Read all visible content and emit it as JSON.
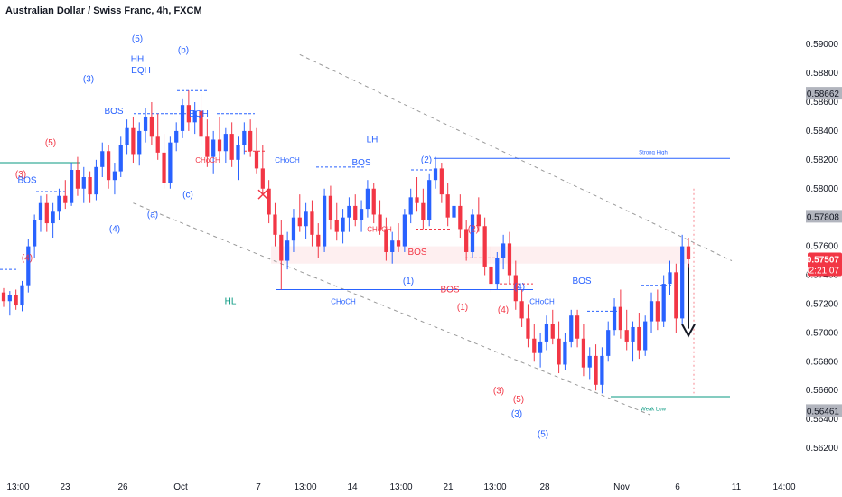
{
  "chart_data": {
    "type": "candlestick",
    "title": "Australian Dollar / Swiss Franc, 4h, FXCM",
    "symbol": "AUDCHF",
    "interval": "4h",
    "source": "FXCM",
    "ylim": [
      0.561,
      0.5912
    ],
    "y_ticks": [
      "0.59000",
      "0.58800",
      "0.58600",
      "0.58400",
      "0.58200",
      "0.58000",
      "0.57600",
      "0.57400",
      "0.57200",
      "0.57000",
      "0.56800",
      "0.56600",
      "0.56400",
      "0.56200"
    ],
    "x_ticks": [
      "13:00",
      "23",
      "26",
      "Oct",
      "7",
      "13:00",
      "14",
      "13:00",
      "21",
      "13:00",
      "28",
      "Nov",
      "6",
      "11",
      "14:00"
    ],
    "price_markers": [
      {
        "value": "0.58662",
        "style": "gray"
      },
      {
        "value": "0.57808",
        "style": "gray"
      },
      {
        "value": "0.57507",
        "style": "red",
        "countdown": "02:21:07"
      },
      {
        "value": "0.56461",
        "style": "gray"
      }
    ],
    "levels": [
      {
        "name": "Strong High",
        "value": 0.5821
      },
      {
        "name": "Weak Low",
        "value": 0.56557
      },
      {
        "name": "CHoCH",
        "value": 0.573
      }
    ],
    "candles": [
      [
        0.5728,
        0.5731,
        0.5718,
        0.5722
      ],
      [
        0.5722,
        0.5729,
        0.5712,
        0.5726
      ],
      [
        0.5726,
        0.573,
        0.5716,
        0.5719
      ],
      [
        0.5719,
        0.5736,
        0.5715,
        0.5733
      ],
      [
        0.5733,
        0.5765,
        0.5728,
        0.576
      ],
      [
        0.576,
        0.5782,
        0.5752,
        0.5778
      ],
      [
        0.5778,
        0.5795,
        0.577,
        0.579
      ],
      [
        0.579,
        0.5796,
        0.577,
        0.5776
      ],
      [
        0.5776,
        0.579,
        0.5766,
        0.5784
      ],
      [
        0.5784,
        0.58,
        0.5778,
        0.5795
      ],
      [
        0.5795,
        0.5806,
        0.5786,
        0.579
      ],
      [
        0.579,
        0.5818,
        0.5788,
        0.5813
      ],
      [
        0.5813,
        0.5822,
        0.5795,
        0.58
      ],
      [
        0.58,
        0.5815,
        0.579,
        0.5808
      ],
      [
        0.5808,
        0.5812,
        0.579,
        0.5796
      ],
      [
        0.5796,
        0.582,
        0.5792,
        0.5815
      ],
      [
        0.5815,
        0.5832,
        0.5808,
        0.5826
      ],
      [
        0.5826,
        0.583,
        0.58,
        0.5806
      ],
      [
        0.5806,
        0.5818,
        0.5796,
        0.5812
      ],
      [
        0.5812,
        0.5836,
        0.5808,
        0.583
      ],
      [
        0.583,
        0.5848,
        0.5824,
        0.5842
      ],
      [
        0.5842,
        0.585,
        0.5818,
        0.5824
      ],
      [
        0.5824,
        0.5846,
        0.5816,
        0.584
      ],
      [
        0.584,
        0.5856,
        0.5832,
        0.585
      ],
      [
        0.585,
        0.586,
        0.583,
        0.5836
      ],
      [
        0.5836,
        0.5852,
        0.582,
        0.5825
      ],
      [
        0.5825,
        0.5838,
        0.58,
        0.5804
      ],
      [
        0.5804,
        0.5836,
        0.58,
        0.5832
      ],
      [
        0.5832,
        0.5846,
        0.5826,
        0.584
      ],
      [
        0.584,
        0.5862,
        0.5835,
        0.5858
      ],
      [
        0.5858,
        0.5868,
        0.584,
        0.5846
      ],
      [
        0.5846,
        0.586,
        0.5838,
        0.5854
      ],
      [
        0.5854,
        0.5866,
        0.583,
        0.5836
      ],
      [
        0.5836,
        0.5848,
        0.5815,
        0.5822
      ],
      [
        0.5822,
        0.584,
        0.581,
        0.5834
      ],
      [
        0.5834,
        0.585,
        0.582,
        0.5826
      ],
      [
        0.5826,
        0.5842,
        0.5818,
        0.5838
      ],
      [
        0.5838,
        0.5846,
        0.5815,
        0.582
      ],
      [
        0.582,
        0.5836,
        0.5806,
        0.583
      ],
      [
        0.583,
        0.5846,
        0.5824,
        0.584
      ],
      [
        0.584,
        0.5848,
        0.5822,
        0.5826
      ],
      [
        0.5826,
        0.5842,
        0.581,
        0.5814
      ],
      [
        0.5814,
        0.583,
        0.5796,
        0.58
      ],
      [
        0.58,
        0.5806,
        0.5776,
        0.5782
      ],
      [
        0.5782,
        0.579,
        0.576,
        0.5768
      ],
      [
        0.5768,
        0.5778,
        0.573,
        0.575
      ],
      [
        0.575,
        0.577,
        0.5744,
        0.5764
      ],
      [
        0.5764,
        0.5786,
        0.5756,
        0.578
      ],
      [
        0.578,
        0.5796,
        0.577,
        0.5774
      ],
      [
        0.5774,
        0.579,
        0.5765,
        0.5784
      ],
      [
        0.5784,
        0.5792,
        0.576,
        0.5768
      ],
      [
        0.5768,
        0.5776,
        0.5752,
        0.576
      ],
      [
        0.576,
        0.58,
        0.5756,
        0.5795
      ],
      [
        0.5795,
        0.5802,
        0.5772,
        0.5778
      ],
      [
        0.5778,
        0.579,
        0.5764,
        0.577
      ],
      [
        0.577,
        0.5786,
        0.5762,
        0.578
      ],
      [
        0.578,
        0.5794,
        0.577,
        0.5788
      ],
      [
        0.5788,
        0.5796,
        0.5774,
        0.5778
      ],
      [
        0.5778,
        0.5792,
        0.577,
        0.5786
      ],
      [
        0.5786,
        0.5806,
        0.578,
        0.58
      ],
      [
        0.58,
        0.5804,
        0.5776,
        0.5782
      ],
      [
        0.5782,
        0.5792,
        0.5768,
        0.5772
      ],
      [
        0.5772,
        0.578,
        0.575,
        0.5756
      ],
      [
        0.5756,
        0.577,
        0.5748,
        0.5764
      ],
      [
        0.5764,
        0.5776,
        0.5756,
        0.576
      ],
      [
        0.576,
        0.5786,
        0.5756,
        0.5782
      ],
      [
        0.5782,
        0.58,
        0.5776,
        0.5794
      ],
      [
        0.5794,
        0.5808,
        0.5784,
        0.579
      ],
      [
        0.579,
        0.58,
        0.5772,
        0.5778
      ],
      [
        0.5778,
        0.581,
        0.5774,
        0.5806
      ],
      [
        0.5806,
        0.5822,
        0.58,
        0.5814
      ],
      [
        0.5814,
        0.5818,
        0.579,
        0.5796
      ],
      [
        0.5796,
        0.5804,
        0.5774,
        0.578
      ],
      [
        0.578,
        0.5794,
        0.577,
        0.5788
      ],
      [
        0.5788,
        0.5796,
        0.5766,
        0.5772
      ],
      [
        0.5772,
        0.5778,
        0.575,
        0.5756
      ],
      [
        0.5756,
        0.5786,
        0.5752,
        0.5782
      ],
      [
        0.5782,
        0.5794,
        0.577,
        0.5774
      ],
      [
        0.5774,
        0.578,
        0.574,
        0.5746
      ],
      [
        0.5746,
        0.576,
        0.5728,
        0.5734
      ],
      [
        0.5734,
        0.5756,
        0.573,
        0.5752
      ],
      [
        0.5752,
        0.5768,
        0.5744,
        0.5762
      ],
      [
        0.5762,
        0.577,
        0.5734,
        0.574
      ],
      [
        0.574,
        0.575,
        0.5716,
        0.5722
      ],
      [
        0.5722,
        0.573,
        0.5704,
        0.571
      ],
      [
        0.571,
        0.572,
        0.569,
        0.5696
      ],
      [
        0.5696,
        0.5706,
        0.568,
        0.5686
      ],
      [
        0.5686,
        0.57,
        0.5676,
        0.5694
      ],
      [
        0.5694,
        0.5712,
        0.5688,
        0.5706
      ],
      [
        0.5706,
        0.5716,
        0.5692,
        0.5696
      ],
      [
        0.5696,
        0.5708,
        0.5672,
        0.5678
      ],
      [
        0.5678,
        0.57,
        0.5674,
        0.5694
      ],
      [
        0.5694,
        0.5716,
        0.569,
        0.5712
      ],
      [
        0.5712,
        0.5716,
        0.569,
        0.5696
      ],
      [
        0.5696,
        0.5706,
        0.567,
        0.5676
      ],
      [
        0.5676,
        0.569,
        0.5668,
        0.5684
      ],
      [
        0.5684,
        0.5692,
        0.566,
        0.5664
      ],
      [
        0.5664,
        0.569,
        0.5658,
        0.5684
      ],
      [
        0.5684,
        0.5708,
        0.568,
        0.5702
      ],
      [
        0.5702,
        0.5724,
        0.5698,
        0.5718
      ],
      [
        0.5718,
        0.573,
        0.5696,
        0.5702
      ],
      [
        0.5702,
        0.5716,
        0.5688,
        0.5694
      ],
      [
        0.5694,
        0.5708,
        0.568,
        0.5704
      ],
      [
        0.5704,
        0.5714,
        0.5682,
        0.5688
      ],
      [
        0.5688,
        0.5712,
        0.5684,
        0.5708
      ],
      [
        0.5708,
        0.5728,
        0.57,
        0.5722
      ],
      [
        0.5722,
        0.573,
        0.5702,
        0.5708
      ],
      [
        0.5708,
        0.574,
        0.5704,
        0.5734
      ],
      [
        0.5734,
        0.575,
        0.5726,
        0.5742
      ],
      [
        0.5742,
        0.5748,
        0.57,
        0.571
      ],
      [
        0.571,
        0.5768,
        0.5706,
        0.576
      ],
      [
        0.576,
        0.5766,
        0.5745,
        0.5751
      ]
    ],
    "annotations": [
      {
        "text": "(5)",
        "kind": "blue",
        "x": 0.152,
        "y": 0.5902
      },
      {
        "text": "HH",
        "kind": "blue",
        "x": 0.152,
        "y": 0.5888
      },
      {
        "text": "EQH",
        "kind": "blue",
        "x": 0.156,
        "y": 0.588
      },
      {
        "text": "(b)",
        "kind": "blue",
        "x": 0.203,
        "y": 0.5894
      },
      {
        "text": "(3)",
        "kind": "blue",
        "x": 0.098,
        "y": 0.5874
      },
      {
        "text": "BOS",
        "kind": "blue",
        "x": 0.126,
        "y": 0.5852
      },
      {
        "text": "EQH",
        "kind": "blue",
        "x": 0.22,
        "y": 0.585
      },
      {
        "text": "(5)",
        "kind": "red",
        "x": 0.056,
        "y": 0.583
      },
      {
        "text": "(3)",
        "kind": "red",
        "x": 0.023,
        "y": 0.5808
      },
      {
        "text": "BOS",
        "kind": "blue",
        "x": 0.03,
        "y": 0.5804
      },
      {
        "text": "CHoCH",
        "kind": "red",
        "x": 0.23,
        "y": 0.5818
      },
      {
        "text": "(c)",
        "kind": "blue",
        "x": 0.208,
        "y": 0.5794
      },
      {
        "text": "(a)",
        "kind": "blue",
        "x": 0.169,
        "y": 0.578
      },
      {
        "text": "(4)",
        "kind": "blue",
        "x": 0.127,
        "y": 0.577
      },
      {
        "text": "(4)",
        "kind": "red",
        "x": 0.03,
        "y": 0.575
      },
      {
        "text": "CHoCH",
        "kind": "blue",
        "x": 0.318,
        "y": 0.5818
      },
      {
        "text": "LH",
        "kind": "blue",
        "x": 0.412,
        "y": 0.5832
      },
      {
        "text": "BOS",
        "kind": "blue",
        "x": 0.4,
        "y": 0.5816
      },
      {
        "text": "(2)",
        "kind": "blue",
        "x": 0.472,
        "y": 0.5818
      },
      {
        "text": "CHoCH",
        "kind": "red",
        "x": 0.42,
        "y": 0.577
      },
      {
        "text": "(2)",
        "kind": "red",
        "x": 0.524,
        "y": 0.577
      },
      {
        "text": "BOS",
        "kind": "red",
        "x": 0.462,
        "y": 0.5754
      },
      {
        "text": "(1)",
        "kind": "blue",
        "x": 0.452,
        "y": 0.5734
      },
      {
        "text": "BOS",
        "kind": "red",
        "x": 0.498,
        "y": 0.5728
      },
      {
        "text": "CHoCH",
        "kind": "blue",
        "x": 0.38,
        "y": 0.572
      },
      {
        "text": "HL",
        "kind": "teal",
        "x": 0.255,
        "y": 0.572
      },
      {
        "text": "(1)",
        "kind": "red",
        "x": 0.512,
        "y": 0.5716
      },
      {
        "text": "(4)",
        "kind": "red",
        "x": 0.557,
        "y": 0.5714
      },
      {
        "text": "(4)",
        "kind": "blue",
        "x": 0.575,
        "y": 0.573
      },
      {
        "text": "CHoCH",
        "kind": "blue",
        "x": 0.6,
        "y": 0.572
      },
      {
        "text": "BOS",
        "kind": "blue",
        "x": 0.644,
        "y": 0.5734
      },
      {
        "text": "(3)",
        "kind": "red",
        "x": 0.552,
        "y": 0.5658
      },
      {
        "text": "(5)",
        "kind": "red",
        "x": 0.574,
        "y": 0.5652
      },
      {
        "text": "(3)",
        "kind": "blue",
        "x": 0.572,
        "y": 0.5642
      },
      {
        "text": "(5)",
        "kind": "blue",
        "x": 0.601,
        "y": 0.5628
      },
      {
        "text": "Strong High",
        "kind": "blue",
        "x": 0.723,
        "y": 0.5824
      },
      {
        "text": "Weak Low",
        "kind": "teal",
        "x": 0.723,
        "y": 0.5646
      }
    ]
  }
}
